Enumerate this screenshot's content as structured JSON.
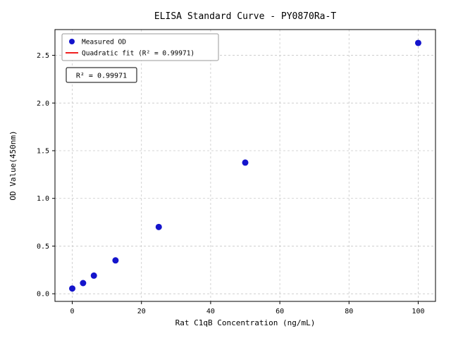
{
  "figure": {
    "title": "ELISA Standard Curve - PY0870Ra-T",
    "xlabel": "Rat C1qB Concentration (ng/mL)",
    "ylabel": "OD Value(450nm)",
    "annotation": "R² = 0.99971",
    "legend": {
      "items": [
        {
          "label": "Measured OD",
          "marker": "dot"
        },
        {
          "label": "Quadratic fit (R² = 0.99971)",
          "marker": "line"
        }
      ]
    },
    "colors": {
      "point": "#1414cc",
      "fit_line": "#ee0000",
      "grid": "#c8c8c8",
      "spine": "#000000",
      "legend_border": "#999999",
      "annotation_border": "#000000",
      "background": "#ffffff"
    }
  },
  "chart_data": {
    "type": "scatter",
    "title": "ELISA Standard Curve - PY0870Ra-T",
    "xlabel": "Rat C1qB Concentration (ng/mL)",
    "ylabel": "OD Value(450nm)",
    "series": [
      {
        "name": "Measured OD",
        "type": "scatter",
        "x": [
          0,
          3.125,
          6.25,
          12.5,
          25,
          50,
          100
        ],
        "y": [
          0.055,
          0.112,
          0.19,
          0.35,
          0.7,
          1.375,
          2.63
        ]
      },
      {
        "name": "Quadratic fit (R² = 0.99971)",
        "type": "line",
        "fit": "quadratic",
        "r_squared": 0.99971,
        "x_range": [
          0,
          100
        ]
      }
    ],
    "x_ticks": [
      0,
      20,
      40,
      60,
      80,
      100
    ],
    "x_tick_labels": [
      "0",
      "20",
      "40",
      "60",
      "80",
      "100"
    ],
    "y_ticks": [
      0.0,
      0.5,
      1.0,
      1.5,
      2.0,
      2.5
    ],
    "y_tick_labels": [
      "0.0",
      "0.5",
      "1.0",
      "1.5",
      "2.0",
      "2.5"
    ],
    "xlim": [
      -5,
      105
    ],
    "ylim": [
      -0.08,
      2.77
    ],
    "grid": true,
    "grid_style": "dashed",
    "legend_position": "upper left"
  }
}
